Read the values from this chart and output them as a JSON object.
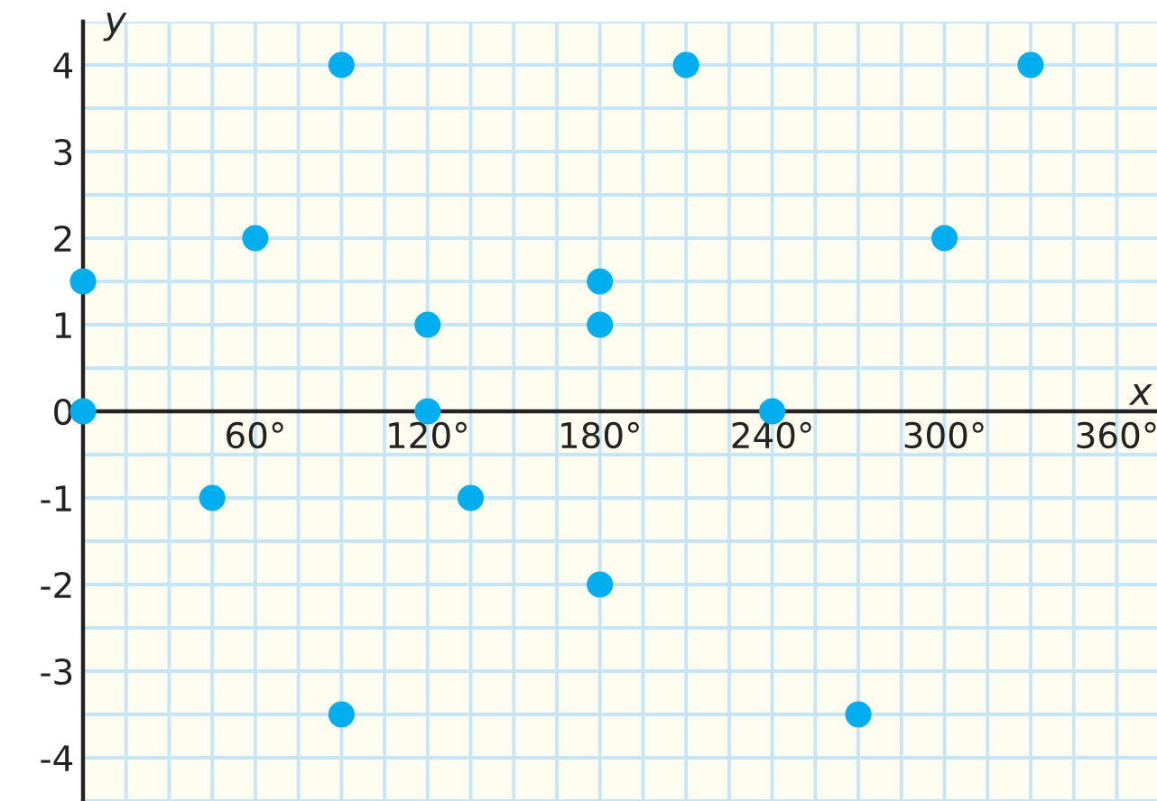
{
  "chart_data": {
    "type": "scatter",
    "xlabel": "x",
    "ylabel": "y",
    "x": [
      0,
      0,
      45,
      60,
      90,
      90,
      120,
      120,
      135,
      180,
      180,
      180,
      210,
      240,
      270,
      300,
      330
    ],
    "values": [
      1.5,
      0,
      -1,
      2,
      4,
      -3.5,
      1,
      0,
      -1,
      1.5,
      1,
      -2,
      4,
      0,
      -3.5,
      2,
      4
    ],
    "color": "#00aeef",
    "marker": "circle",
    "grid": true,
    "xlim": [
      0,
      374
    ],
    "ylim": [
      -4.5,
      4.5
    ],
    "xticks": [
      {
        "value": 0,
        "label": null
      },
      {
        "value": 15,
        "label": null
      },
      {
        "value": 30,
        "label": null
      },
      {
        "value": 45,
        "label": null
      },
      {
        "value": 60,
        "label": "60°"
      },
      {
        "value": 75,
        "label": null
      },
      {
        "value": 90,
        "label": null
      },
      {
        "value": 105,
        "label": null
      },
      {
        "value": 120,
        "label": "120°"
      },
      {
        "value": 135,
        "label": null
      },
      {
        "value": 150,
        "label": null
      },
      {
        "value": 165,
        "label": null
      },
      {
        "value": 180,
        "label": "180°"
      },
      {
        "value": 195,
        "label": null
      },
      {
        "value": 210,
        "label": null
      },
      {
        "value": 225,
        "label": null
      },
      {
        "value": 240,
        "label": "240°"
      },
      {
        "value": 255,
        "label": null
      },
      {
        "value": 270,
        "label": null
      },
      {
        "value": 285,
        "label": null
      },
      {
        "value": 300,
        "label": "300°"
      },
      {
        "value": 315,
        "label": null
      },
      {
        "value": 330,
        "label": null
      },
      {
        "value": 345,
        "label": null
      },
      {
        "value": 360,
        "label": "360°"
      }
    ],
    "yticks": [
      {
        "value": -4.5,
        "label": null
      },
      -4,
      {
        "value": -3.5,
        "label": null
      },
      -3,
      {
        "value": -2.5,
        "label": null
      },
      -2,
      {
        "value": -1.5,
        "label": null
      },
      -1,
      {
        "value": -0.5,
        "label": null
      },
      0,
      {
        "value": 0.5,
        "label": null
      },
      1,
      {
        "value": 1.5,
        "label": null
      },
      2,
      {
        "value": 2.5,
        "label": null
      },
      3,
      {
        "value": 3.5,
        "label": null
      },
      4,
      {
        "value": 4.5,
        "label": null
      }
    ]
  }
}
